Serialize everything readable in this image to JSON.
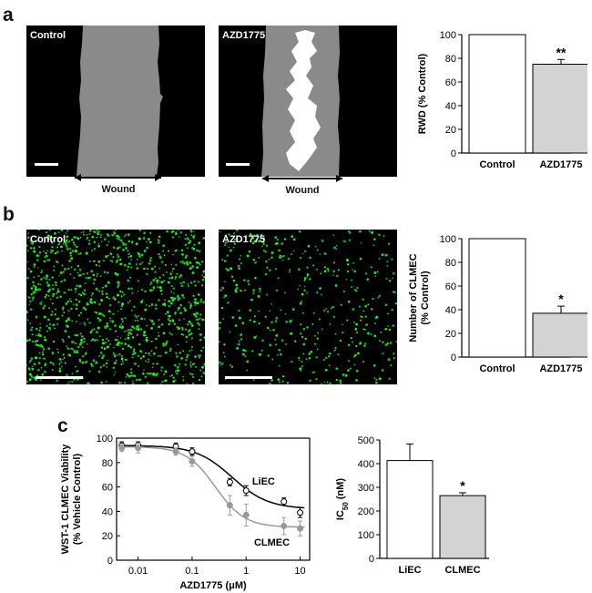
{
  "panels": {
    "a": {
      "letter": "a",
      "images": [
        {
          "label": "Control",
          "annotation": "Wound"
        },
        {
          "label": "AZD1775",
          "annotation": "Wound"
        }
      ]
    },
    "b": {
      "letter": "b",
      "images": [
        {
          "label": "Control"
        },
        {
          "label": "AZD1775"
        }
      ]
    },
    "c": {
      "letter": "c"
    }
  },
  "chart_data": [
    {
      "panel": "a",
      "type": "bar",
      "categories": [
        "Control",
        "AZD1775"
      ],
      "values": [
        100,
        75
      ],
      "errors": [
        0,
        4
      ],
      "colors": [
        "#ffffff",
        "#d3d3d3"
      ],
      "significance": [
        "",
        "**"
      ],
      "ylabel": "RWD (% Control)",
      "ylim": [
        0,
        100
      ],
      "yticks": [
        "0",
        "20",
        "40",
        "60",
        "80",
        "100"
      ]
    },
    {
      "panel": "b",
      "type": "bar",
      "categories": [
        "Control",
        "AZD1775"
      ],
      "values": [
        100,
        37
      ],
      "errors": [
        0,
        6
      ],
      "colors": [
        "#ffffff",
        "#d3d3d3"
      ],
      "significance": [
        "",
        "*"
      ],
      "ylabel": [
        "Number of CLMEC",
        "(% Control)"
      ],
      "ylim": [
        0,
        100
      ],
      "yticks": [
        "0",
        "20",
        "40",
        "60",
        "80",
        "100"
      ]
    },
    {
      "panel": "c",
      "type": "scatter",
      "xscale": "log",
      "xlabel": "AZD1775 (μM)",
      "ylabel": [
        "WST-1 CLMEC Viability",
        "(% Vehicle Control)"
      ],
      "xlim": [
        0.004,
        15
      ],
      "ylim": [
        0,
        100
      ],
      "xticks": [
        "0.01",
        "0.1",
        "1",
        "10"
      ],
      "yticks": [
        "0",
        "20",
        "40",
        "60",
        "80",
        "100"
      ],
      "series": [
        {
          "name": "LiEC",
          "marker": "open-circle",
          "line_color": "#000000",
          "x": [
            0.005,
            0.01,
            0.05,
            0.1,
            0.5,
            1,
            5,
            10
          ],
          "y": [
            94,
            94,
            93,
            89,
            64,
            57,
            48,
            39
          ],
          "errors": [
            3,
            3,
            3,
            3,
            3,
            4,
            3,
            4
          ]
        },
        {
          "name": "CLMEC",
          "marker": "filled-circle",
          "line_color": "#999999",
          "x": [
            0.005,
            0.01,
            0.05,
            0.1,
            0.5,
            1,
            5,
            10
          ],
          "y": [
            92,
            92,
            89,
            81,
            45,
            37,
            28,
            26
          ],
          "errors": [
            3,
            4,
            3,
            4,
            8,
            9,
            7,
            6
          ]
        }
      ]
    },
    {
      "panel": "c",
      "type": "bar",
      "categories": [
        "LiEC",
        "CLMEC"
      ],
      "values": [
        413,
        265
      ],
      "errors": [
        70,
        12
      ],
      "colors": [
        "#ffffff",
        "#d3d3d3"
      ],
      "significance": [
        "",
        "*"
      ],
      "ylabel": "IC50 (nM)",
      "ylim": [
        0,
        500
      ],
      "yticks": [
        "0",
        "100",
        "200",
        "300",
        "400",
        "500"
      ]
    }
  ]
}
